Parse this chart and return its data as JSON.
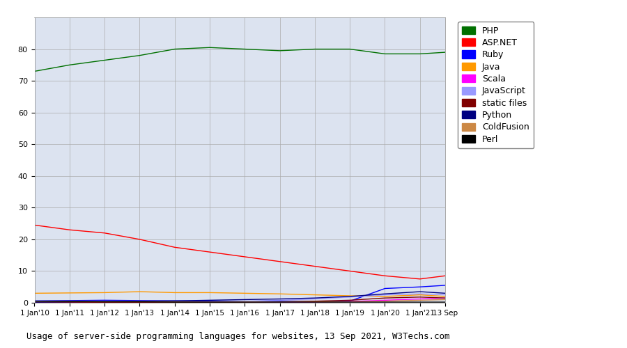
{
  "title": "Usage of server-side programming languages for websites, 13 Sep 2021, W3Techs.com",
  "plot_bg_color": "#dce3f0",
  "fig_bg_color": "#ffffff",
  "series": [
    {
      "name": "PHP",
      "color": "#007000",
      "data": [
        73.0,
        75.0,
        76.5,
        78.0,
        80.0,
        80.5,
        80.0,
        79.5,
        80.0,
        80.0,
        78.5,
        78.5,
        79.0
      ]
    },
    {
      "name": "ASP.NET",
      "color": "#ff0000",
      "data": [
        24.5,
        23.0,
        22.0,
        20.0,
        17.5,
        16.0,
        14.5,
        13.0,
        11.5,
        10.0,
        8.5,
        7.5,
        8.5
      ]
    },
    {
      "name": "Ruby",
      "color": "#0000ff",
      "data": [
        0.6,
        0.7,
        0.8,
        0.7,
        0.6,
        0.5,
        0.5,
        0.5,
        0.4,
        0.5,
        4.5,
        5.0,
        5.5
      ]
    },
    {
      "name": "Java",
      "color": "#ff9900",
      "data": [
        3.0,
        3.1,
        3.2,
        3.5,
        3.2,
        3.2,
        3.0,
        2.8,
        2.5,
        2.2,
        2.0,
        2.5,
        2.0
      ]
    },
    {
      "name": "Scala",
      "color": "#ff00ff",
      "data": [
        0.0,
        0.0,
        0.0,
        0.0,
        0.0,
        0.0,
        0.0,
        0.0,
        0.2,
        0.4,
        0.8,
        1.2,
        1.5
      ]
    },
    {
      "name": "JavaScript",
      "color": "#9999ff",
      "data": [
        0.1,
        0.1,
        0.1,
        0.1,
        0.2,
        0.3,
        0.5,
        0.8,
        1.2,
        1.8,
        2.5,
        2.8,
        2.5
      ]
    },
    {
      "name": "static files",
      "color": "#800000",
      "data": [
        0.1,
        0.1,
        0.1,
        0.1,
        0.1,
        0.1,
        0.2,
        0.3,
        0.5,
        0.8,
        1.5,
        1.8,
        1.5
      ]
    },
    {
      "name": "Python",
      "color": "#000080",
      "data": [
        0.2,
        0.3,
        0.4,
        0.5,
        0.6,
        0.8,
        1.0,
        1.2,
        1.5,
        2.0,
        2.8,
        3.5,
        3.0
      ]
    },
    {
      "name": "ColdFusion",
      "color": "#cc8844",
      "data": [
        0.5,
        0.5,
        0.4,
        0.4,
        0.3,
        0.3,
        0.3,
        0.3,
        0.3,
        0.3,
        0.5,
        0.8,
        1.0
      ]
    },
    {
      "name": "Perl",
      "color": "#000000",
      "data": [
        0.5,
        0.4,
        0.3,
        0.3,
        0.2,
        0.2,
        0.2,
        0.2,
        0.2,
        0.2,
        0.2,
        0.2,
        0.2
      ]
    }
  ],
  "x_labels": [
    "1 Jan'10",
    "1 Jan'11",
    "1 Jan'12",
    "1 Jan'13",
    "1 Jan'14",
    "1 Jan'15",
    "1 Jan'16",
    "1 Jan'17",
    "1 Jan'18",
    "1 Jan'19",
    "1 Jan'20",
    "1 Jan'21",
    "13 Sep"
  ],
  "x_years": [
    2010,
    2011,
    2012,
    2013,
    2014,
    2015,
    2016,
    2017,
    2018,
    2019,
    2020,
    2021,
    2021.72
  ],
  "ylim": [
    0,
    90
  ],
  "yticks": [
    0,
    10,
    20,
    30,
    40,
    50,
    60,
    70,
    80
  ],
  "grid_color": "#aaaaaa",
  "legend_fontsize": 9,
  "title_fontsize": 9
}
